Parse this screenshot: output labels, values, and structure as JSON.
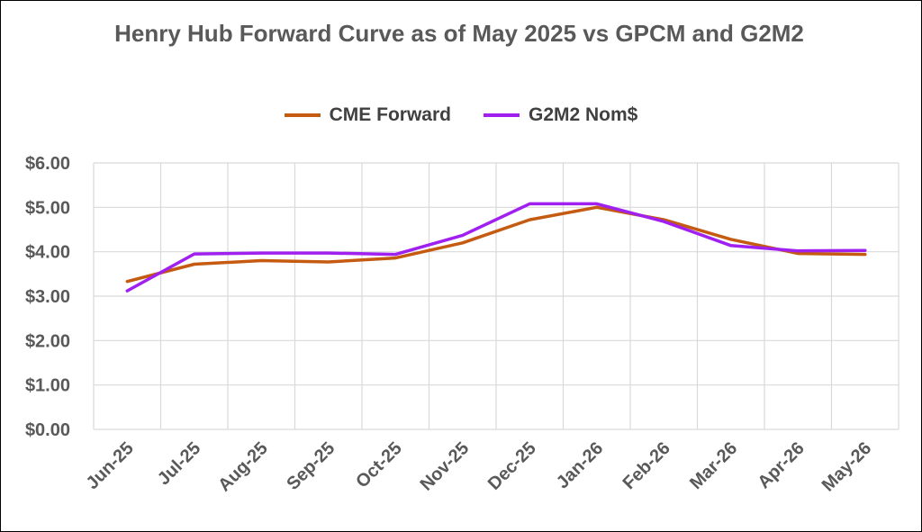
{
  "chart_data": {
    "type": "line",
    "title": "Henry Hub Forward Curve as of May 2025 vs GPCM and G2M2",
    "categories": [
      "Jun-25",
      "Jul-25",
      "Aug-25",
      "Sep-25",
      "Oct-25",
      "Nov-25",
      "Dec-25",
      "Jan-26",
      "Feb-26",
      "Mar-26",
      "Apr-26",
      "May-26"
    ],
    "y_ticks": [
      "$0.00",
      "$1.00",
      "$2.00",
      "$3.00",
      "$4.00",
      "$5.00",
      "$6.00"
    ],
    "ylim": [
      0,
      6
    ],
    "grid": true,
    "legend_position": "top",
    "series": [
      {
        "name": "CME Forward",
        "color": "#C55A11",
        "values": [
          3.33,
          3.72,
          3.8,
          3.77,
          3.86,
          4.2,
          4.72,
          5.0,
          4.72,
          4.28,
          3.96,
          3.94
        ]
      },
      {
        "name": "G2M2 Nom$",
        "color": "#A020F0",
        "values": [
          3.12,
          3.95,
          3.97,
          3.97,
          3.94,
          4.37,
          5.08,
          5.08,
          4.68,
          4.14,
          4.02,
          4.03
        ]
      }
    ]
  }
}
